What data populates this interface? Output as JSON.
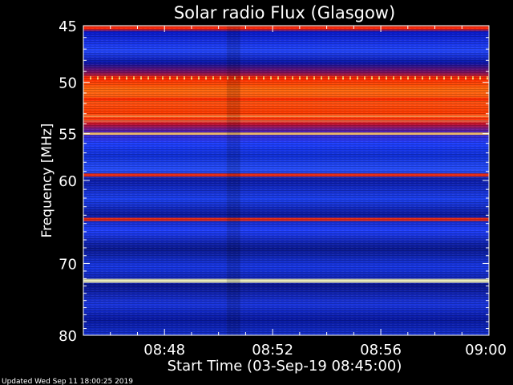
{
  "chart_data": {
    "type": "heatmap",
    "title": "Solar radio Flux (Glasgow)",
    "xlabel": "Start Time (03-Sep-19 08:45:00)",
    "ylabel": "Frequency [MHz]",
    "x_ticks": [
      "08:48",
      "08:52",
      "08:56",
      "09:00"
    ],
    "x_tick_minutes": [
      3,
      7,
      11,
      15
    ],
    "x_range_minutes": [
      0,
      15
    ],
    "y_ticks": [
      45,
      50,
      55,
      60,
      70,
      80
    ],
    "ylim": [
      45,
      80
    ],
    "y_scale": "log",
    "footer": "Updated Wed Sep 11 18:00:25 2019",
    "colors": {
      "background": "#000000",
      "low": "#0000b4",
      "mid": "#ff2a00",
      "high": "#ffffc0"
    },
    "intensity_bands": [
      {
        "freq": 45.1,
        "level": 0.72
      },
      {
        "freq": 49.6,
        "level": 0.75
      },
      {
        "freq": 51.6,
        "level": 0.82
      },
      {
        "freq": 53.5,
        "level": 0.8
      },
      {
        "freq": 55.0,
        "level": 0.88
      },
      {
        "freq": 59.4,
        "level": 0.72
      },
      {
        "freq": 64.5,
        "level": 0.7
      },
      {
        "freq": 72.3,
        "level": 0.97
      }
    ]
  }
}
